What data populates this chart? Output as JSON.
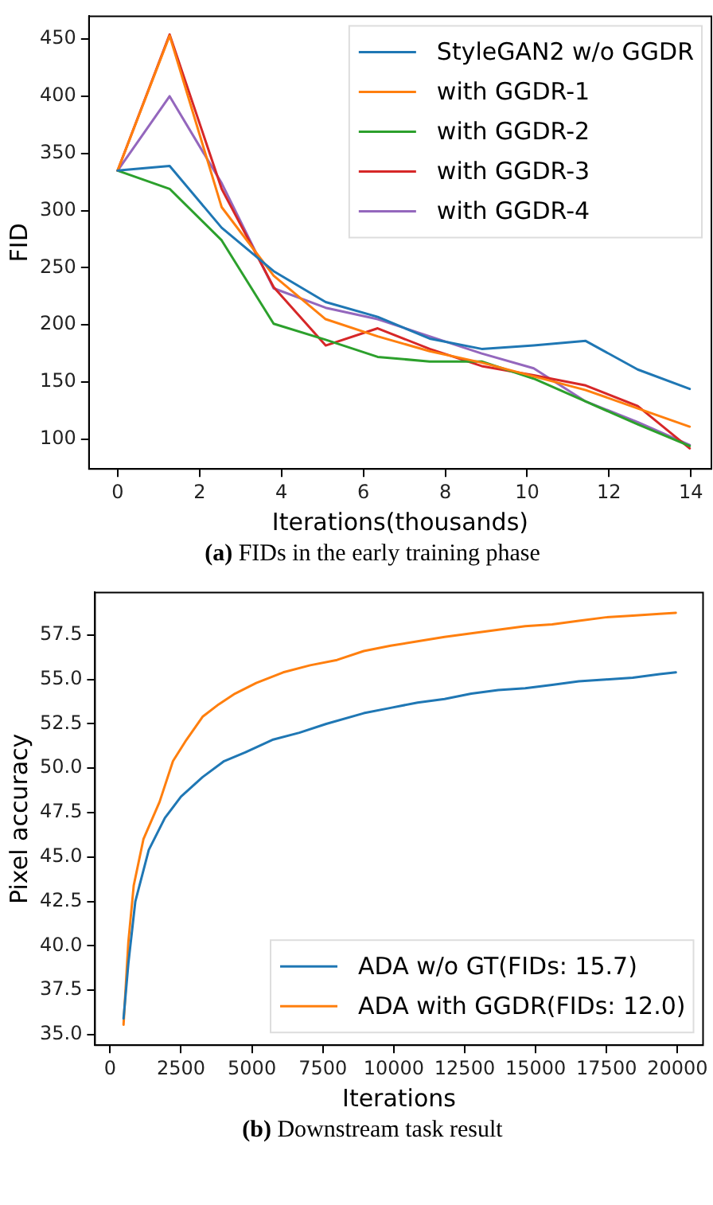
{
  "chart_data": [
    {
      "type": "line",
      "xlabel": "Iterations(thousands)",
      "ylabel": "FID",
      "annotations": [
        "(a) FIDs in the early training phase"
      ],
      "x": [
        0,
        1.27,
        2.54,
        3.81,
        5.08,
        6.35,
        7.62,
        8.89,
        10.16,
        11.43,
        12.7,
        13.97
      ],
      "xlim": [
        -0.7,
        14.5
      ],
      "xticks": [
        0,
        2,
        4,
        6,
        8,
        10,
        12,
        14
      ],
      "ylim": [
        74,
        470
      ],
      "yticks": [
        100,
        150,
        200,
        250,
        300,
        350,
        400,
        450
      ],
      "grid": false,
      "legend": "top right",
      "marker": "none",
      "line_style": "solid",
      "series": [
        {
          "name": "StyleGAN2 w/o GGDR",
          "color": "#1f77b4",
          "values": [
            335,
            339,
            285,
            247,
            220,
            207,
            188,
            179,
            182,
            186,
            161,
            144
          ]
        },
        {
          "name": "with GGDR-1",
          "color": "#ff7f0e",
          "values": [
            335,
            453,
            303,
            243,
            205,
            190,
            177,
            167,
            155,
            143,
            127,
            111
          ]
        },
        {
          "name": "with GGDR-2",
          "color": "#2ca02c",
          "values": [
            335,
            319,
            274,
            201,
            187,
            172,
            168,
            168,
            153,
            133,
            113,
            94
          ]
        },
        {
          "name": "with GGDR-3",
          "color": "#d62728",
          "values": [
            335,
            454,
            319,
            233,
            182,
            197,
            179,
            164,
            156,
            147,
            129,
            92
          ]
        },
        {
          "name": "with GGDR-4",
          "color": "#9467bd",
          "values": [
            335,
            400,
            324,
            232,
            215,
            205,
            190,
            175,
            162,
            133,
            115,
            95
          ]
        }
      ]
    },
    {
      "type": "line",
      "xlabel": "Iterations",
      "ylabel": "Pixel accuracy",
      "annotations": [
        "(b) Downstream task result"
      ],
      "xlim": [
        -530,
        20900
      ],
      "xticks": [
        0,
        2500,
        5000,
        7500,
        10000,
        12500,
        15000,
        17500,
        20000
      ],
      "ylim": [
        34.4,
        59.9
      ],
      "yticks": [
        {
          "value": 35,
          "label": "35.0"
        },
        37.5,
        {
          "value": 40,
          "label": "40.0"
        },
        42.5,
        {
          "value": 45,
          "label": "45.0"
        },
        47.5,
        {
          "value": 50,
          "label": "50.0"
        },
        52.5,
        {
          "value": 55,
          "label": "55.0"
        },
        57.5
      ],
      "grid": false,
      "legend": "bottom right",
      "marker": "none",
      "line_style": "solid",
      "series": [
        {
          "name": "ADA w/o GT(FIDs: 15.7)",
          "color": "#1f77b4",
          "x": [
            474,
            644,
            890,
            1364,
            1933,
            2500,
            3260,
            4020,
            4775,
            5720,
            6670,
            7620,
            8940,
            9890,
            10840,
            11790,
            12730,
            13680,
            14630,
            15580,
            16520,
            17470,
            18420,
            19370,
            19940
          ],
          "values": [
            35.9,
            39.0,
            42.5,
            45.4,
            47.2,
            48.4,
            49.5,
            50.4,
            50.9,
            51.6,
            52.0,
            52.5,
            53.1,
            53.4,
            53.7,
            53.9,
            54.2,
            54.4,
            54.5,
            54.7,
            54.9,
            55.0,
            55.1,
            55.3,
            55.4
          ]
        },
        {
          "name": "ADA with GGDR(FIDs: 12.0)",
          "color": "#ff7f0e",
          "x": [
            474,
            644,
            834,
            1175,
            1743,
            2217,
            2690,
            3260,
            3830,
            4400,
            5150,
            6100,
            7050,
            8000,
            8940,
            9890,
            10840,
            11790,
            12730,
            13680,
            14630,
            15580,
            16520,
            17470,
            18420,
            19370,
            19940
          ],
          "values": [
            35.55,
            40.2,
            43.4,
            46.0,
            48.1,
            50.4,
            51.6,
            52.9,
            53.6,
            54.2,
            54.8,
            55.4,
            55.8,
            56.1,
            56.6,
            56.9,
            57.15,
            57.4,
            57.6,
            57.8,
            58.0,
            58.1,
            58.3,
            58.5,
            58.6,
            58.7,
            58.75
          ]
        }
      ]
    }
  ]
}
